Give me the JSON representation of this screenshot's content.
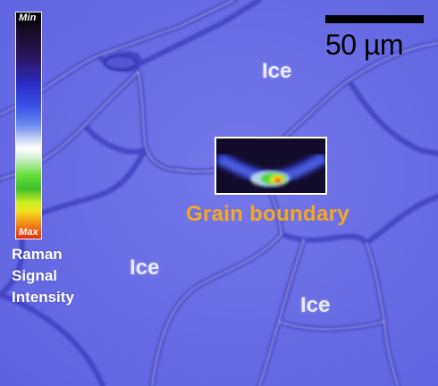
{
  "colorbar": {
    "min_label": "Min",
    "max_label": "Max",
    "title_lines": [
      "Raman",
      "Signal",
      "Intensity"
    ]
  },
  "scale_bar": {
    "label": "50 µm"
  },
  "annotations": {
    "ice_labels": [
      "Ice",
      "Ice",
      "Ice"
    ],
    "inset_label": "Grain boundary"
  },
  "colors": {
    "micrograph_base": "#6a6ce6",
    "grain_boundary_line": "#4446c8",
    "ice_label": "#e8eaff",
    "grain_boundary_label": "#f5a81e",
    "scale_bar": "#000000"
  }
}
